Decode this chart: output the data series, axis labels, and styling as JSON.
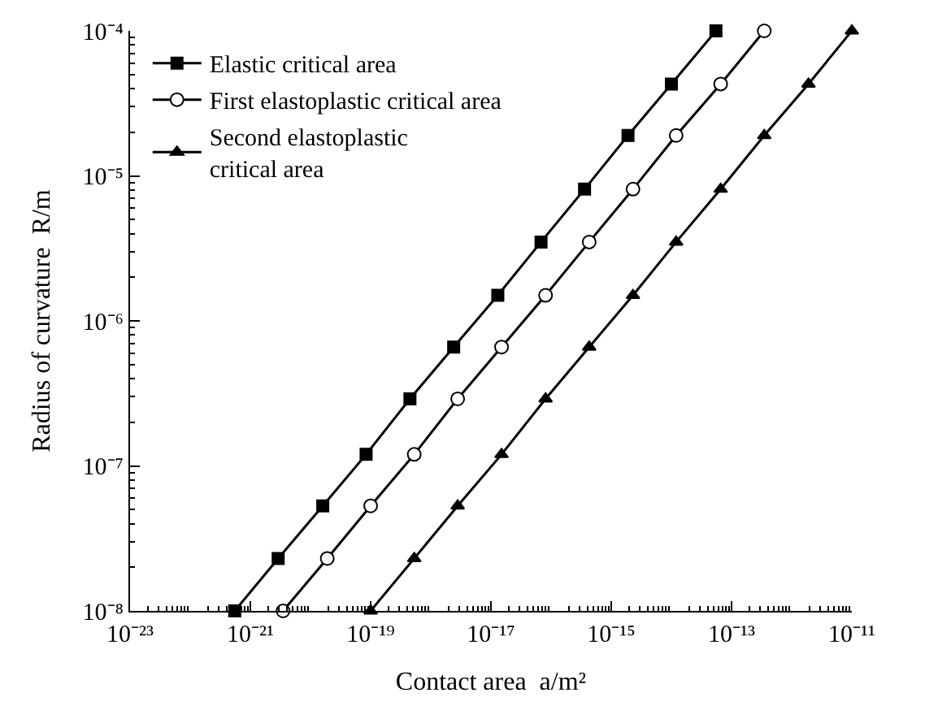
{
  "chart_data": {
    "type": "line",
    "xlabel": "Contact area  a/m²",
    "ylabel": "Radius of curvature  R/m",
    "log": "xy",
    "grid": false,
    "legend": "top left",
    "line_style": "solid",
    "xlim": [
      1e-23,
      1e-11
    ],
    "xticks": [
      {
        "value": 1e-23,
        "label": "10⁻²³"
      },
      {
        "value": 1e-21,
        "label": "10⁻²¹"
      },
      {
        "value": 1e-19,
        "label": "10⁻¹⁹"
      },
      {
        "value": 1e-17,
        "label": "10⁻¹⁷"
      },
      {
        "value": 1e-15,
        "label": "10⁻¹⁵"
      },
      {
        "value": 1e-13,
        "label": "10⁻¹³"
      },
      {
        "value": 1e-11,
        "label": "10⁻¹¹"
      }
    ],
    "ylim": [
      1e-08,
      0.0001
    ],
    "yticks": [
      {
        "value": 1e-08,
        "label": "10⁻⁸"
      },
      {
        "value": 1e-07,
        "label": "10⁻⁷"
      },
      {
        "value": 1e-06,
        "label": "10⁻⁶"
      },
      {
        "value": 1e-05,
        "label": "10⁻⁵"
      },
      {
        "value": 0.0001,
        "label": "10⁻⁴"
      }
    ],
    "series": [
      {
        "name": "Elastic critical area",
        "color": "#000000",
        "marker": "square",
        "x": [
          5.5e-22,
          2.9e-21,
          1.6e-20,
          8.4e-20,
          4.5e-19,
          2.4e-18,
          1.3e-17,
          6.8e-17,
          3.6e-16,
          1.9e-15,
          1e-14,
          5.5e-14
        ],
        "values": [
          1e-08,
          2.3e-08,
          5.3e-08,
          1.2e-07,
          2.9e-07,
          6.6e-07,
          1.5e-06,
          3.5e-06,
          8.1e-06,
          1.9e-05,
          4.3e-05,
          0.0001
        ]
      },
      {
        "name": "First elastoplastic critical area",
        "color": "#000000",
        "marker": "circle",
        "x": [
          3.5e-21,
          1.9e-20,
          1e-19,
          5.3e-19,
          2.8e-18,
          1.5e-17,
          8.1e-17,
          4.3e-16,
          2.3e-15,
          1.2e-14,
          6.6e-14,
          3.5e-13
        ],
        "values": [
          1e-08,
          2.3e-08,
          5.3e-08,
          1.2e-07,
          2.9e-07,
          6.6e-07,
          1.5e-06,
          3.5e-06,
          8.1e-06,
          1.9e-05,
          4.3e-05,
          0.0001
        ]
      },
      {
        "name": "Second elastoplastic\ncritical area",
        "color": "#000000",
        "marker": "triangle",
        "x": [
          1e-19,
          5.3e-19,
          2.8e-18,
          1.5e-17,
          8.1e-17,
          4.3e-16,
          2.3e-15,
          1.2e-14,
          6.6e-14,
          3.5e-13,
          1.9e-12,
          1e-11
        ],
        "values": [
          1e-08,
          2.3e-08,
          5.3e-08,
          1.2e-07,
          2.9e-07,
          6.6e-07,
          1.5e-06,
          3.5e-06,
          8.1e-06,
          1.9e-05,
          4.3e-05,
          0.0001
        ]
      }
    ]
  }
}
